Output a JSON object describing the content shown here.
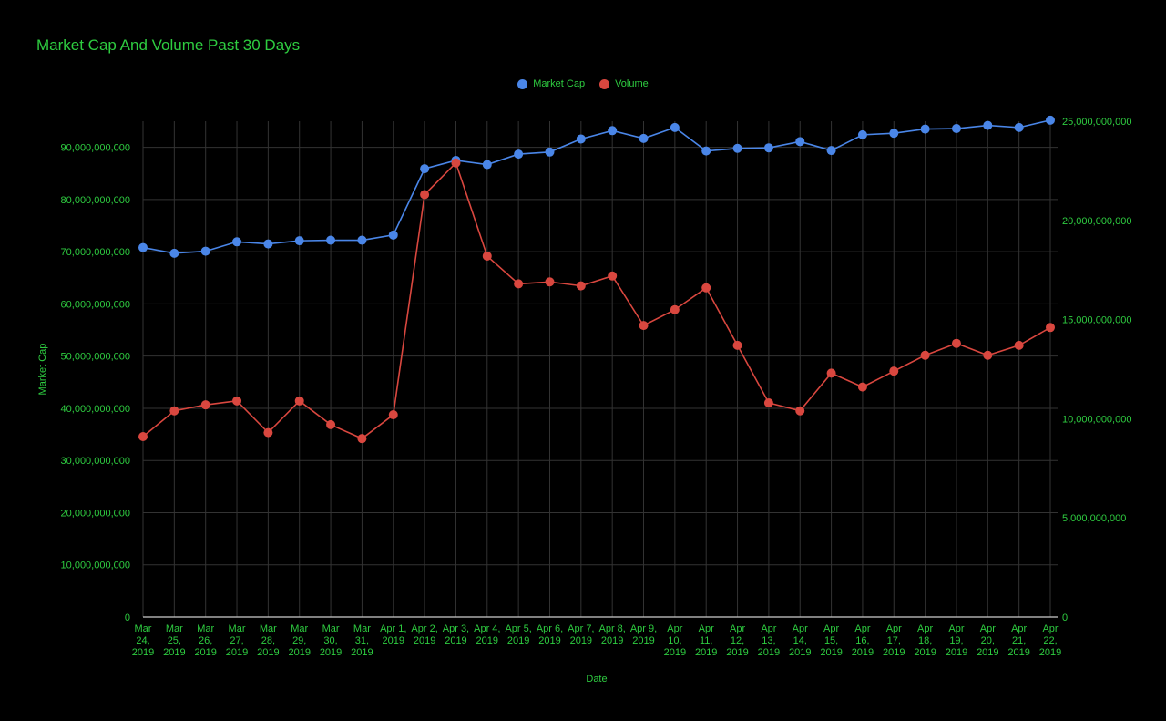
{
  "chart_data": {
    "type": "line",
    "title": "Market Cap And Volume Past 30 Days",
    "xlabel": "Date",
    "ylabel": "Market Cap",
    "y2label": "",
    "grid": true,
    "legend_position": "top",
    "categories": [
      "Mar 24, 2019",
      "Mar 25, 2019",
      "Mar 26, 2019",
      "Mar 27, 2019",
      "Mar 28, 2019",
      "Mar 29, 2019",
      "Mar 30, 2019",
      "Mar 31, 2019",
      "Apr 1, 2019",
      "Apr 2, 2019",
      "Apr 3, 2019",
      "Apr 4, 2019",
      "Apr 5, 2019",
      "Apr 6, 2019",
      "Apr 7, 2019",
      "Apr 8, 2019",
      "Apr 9, 2019",
      "Apr 10, 2019",
      "Apr 11, 2019",
      "Apr 12, 2019",
      "Apr 13, 2019",
      "Apr 14, 2019",
      "Apr 15, 2019",
      "Apr 16, 2019",
      "Apr 17, 2019",
      "Apr 18, 2019",
      "Apr 19, 2019",
      "Apr 20, 2019",
      "Apr 21, 2019",
      "Apr 22, 2019"
    ],
    "category_labels": [
      [
        "Mar",
        "24,",
        "2019"
      ],
      [
        "Mar",
        "25,",
        "2019"
      ],
      [
        "Mar",
        "26,",
        "2019"
      ],
      [
        "Mar",
        "27,",
        "2019"
      ],
      [
        "Mar",
        "28,",
        "2019"
      ],
      [
        "Mar",
        "29,",
        "2019"
      ],
      [
        "Mar",
        "30,",
        "2019"
      ],
      [
        "Mar",
        "31,",
        "2019"
      ],
      [
        "Apr 1,",
        "2019"
      ],
      [
        "Apr 2,",
        "2019"
      ],
      [
        "Apr 3,",
        "2019"
      ],
      [
        "Apr 4,",
        "2019"
      ],
      [
        "Apr 5,",
        "2019"
      ],
      [
        "Apr 6,",
        "2019"
      ],
      [
        "Apr 7,",
        "2019"
      ],
      [
        "Apr 8,",
        "2019"
      ],
      [
        "Apr 9,",
        "2019"
      ],
      [
        "Apr",
        "10,",
        "2019"
      ],
      [
        "Apr",
        "11,",
        "2019"
      ],
      [
        "Apr",
        "12,",
        "2019"
      ],
      [
        "Apr",
        "13,",
        "2019"
      ],
      [
        "Apr",
        "14,",
        "2019"
      ],
      [
        "Apr",
        "15,",
        "2019"
      ],
      [
        "Apr",
        "16,",
        "2019"
      ],
      [
        "Apr",
        "17,",
        "2019"
      ],
      [
        "Apr",
        "18,",
        "2019"
      ],
      [
        "Apr",
        "19,",
        "2019"
      ],
      [
        "Apr",
        "20,",
        "2019"
      ],
      [
        "Apr",
        "21,",
        "2019"
      ],
      [
        "Apr",
        "22,",
        "2019"
      ]
    ],
    "ylim": [
      0,
      95000000000
    ],
    "y2lim": [
      0,
      25000000000
    ],
    "y_ticks": [
      0,
      10000000000,
      20000000000,
      30000000000,
      40000000000,
      50000000000,
      60000000000,
      70000000000,
      80000000000,
      90000000000
    ],
    "y_tick_labels": [
      "0",
      "10,000,000,000",
      "20,000,000,000",
      "30,000,000,000",
      "40,000,000,000",
      "50,000,000,000",
      "60,000,000,000",
      "70,000,000,000",
      "80,000,000,000",
      "90,000,000,000"
    ],
    "y2_ticks": [
      0,
      5000000000,
      10000000000,
      15000000000,
      20000000000,
      25000000000
    ],
    "y2_tick_labels": [
      "0",
      "5,000,000,000",
      "10,000,000,000",
      "15,000,000,000",
      "20,000,000,000",
      "25,000,000,000"
    ],
    "series": [
      {
        "name": "Market Cap",
        "axis": "left",
        "color": "#4a86e8",
        "values": [
          70800000000,
          69700000000,
          70100000000,
          71900000000,
          71500000000,
          72100000000,
          72200000000,
          72200000000,
          73200000000,
          85900000000,
          87500000000,
          86700000000,
          88700000000,
          89100000000,
          91600000000,
          93200000000,
          91700000000,
          93800000000,
          89300000000,
          89800000000,
          89900000000,
          91100000000,
          89400000000,
          92400000000,
          92700000000,
          93500000000,
          93600000000,
          94200000000,
          93800000000,
          95200000000
        ]
      },
      {
        "name": "Volume",
        "axis": "right",
        "color": "#d9473f",
        "values": [
          9100000000,
          10400000000,
          10700000000,
          10900000000,
          9300000000,
          10900000000,
          9700000000,
          9000000000,
          10200000000,
          21300000000,
          22900000000,
          18200000000,
          16800000000,
          16900000000,
          16700000000,
          17200000000,
          14700000000,
          15500000000,
          16600000000,
          13700000000,
          10800000000,
          10400000000,
          12300000000,
          11600000000,
          12400000000,
          13200000000,
          13800000000,
          13200000000,
          13700000000,
          14600000000
        ]
      }
    ],
    "colors": {
      "background": "#000000",
      "text": "#2ecc40",
      "grid": "#333333",
      "axis": "#cccccc"
    }
  }
}
